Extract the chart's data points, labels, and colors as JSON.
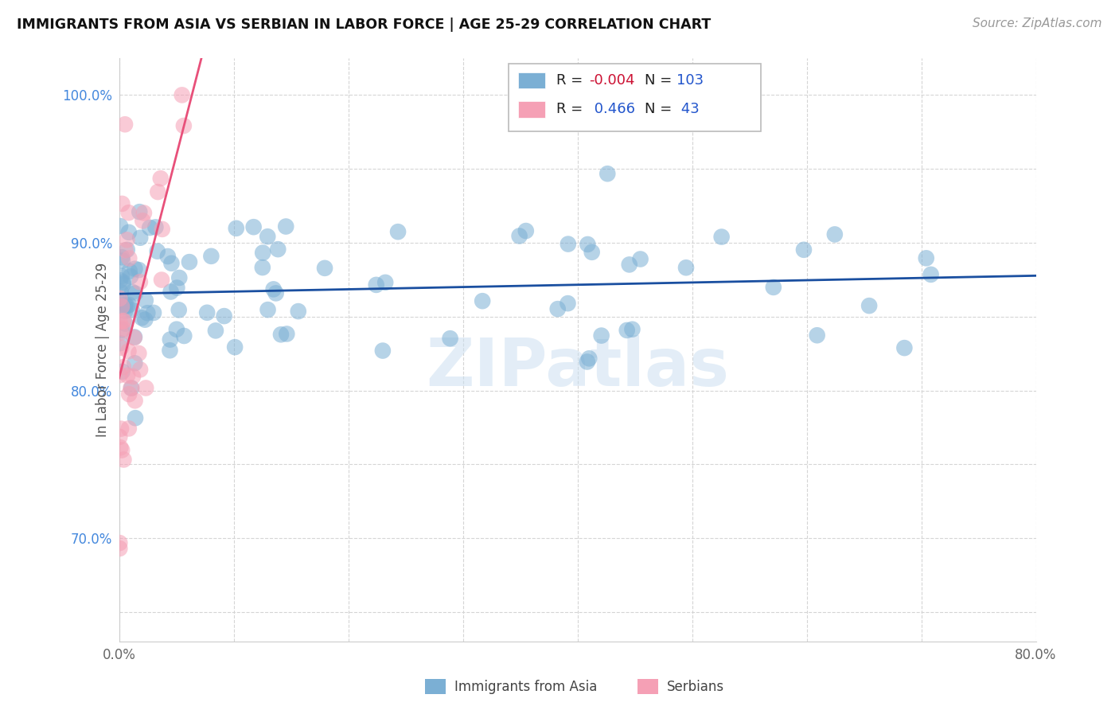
{
  "title": "IMMIGRANTS FROM ASIA VS SERBIAN IN LABOR FORCE | AGE 25-29 CORRELATION CHART",
  "source": "Source: ZipAtlas.com",
  "ylabel": "In Labor Force | Age 25-29",
  "xlim": [
    0.0,
    0.8
  ],
  "ylim": [
    0.63,
    1.025
  ],
  "ytick_positions": [
    0.65,
    0.7,
    0.75,
    0.8,
    0.85,
    0.9,
    0.95,
    1.0
  ],
  "ytick_labels": [
    "",
    "70.0%",
    "",
    "80.0%",
    "",
    "90.0%",
    "",
    "100.0%"
  ],
  "xtick_positions": [
    0.0,
    0.1,
    0.2,
    0.3,
    0.4,
    0.5,
    0.6,
    0.7,
    0.8
  ],
  "xtick_labels": [
    "0.0%",
    "",
    "",
    "",
    "",
    "",
    "",
    "",
    "80.0%"
  ],
  "legend_R_blue": "-0.004",
  "legend_N_blue": "103",
  "legend_R_pink": "0.466",
  "legend_N_pink": "43",
  "blue_color": "#7bafd4",
  "pink_color": "#f5a0b5",
  "trend_blue_color": "#1a4fa0",
  "trend_pink_color": "#e8507a",
  "watermark": "ZIPatlas",
  "background_color": "#ffffff",
  "grid_color": "#d5d5d5",
  "blue_seed": 42,
  "pink_seed": 99
}
